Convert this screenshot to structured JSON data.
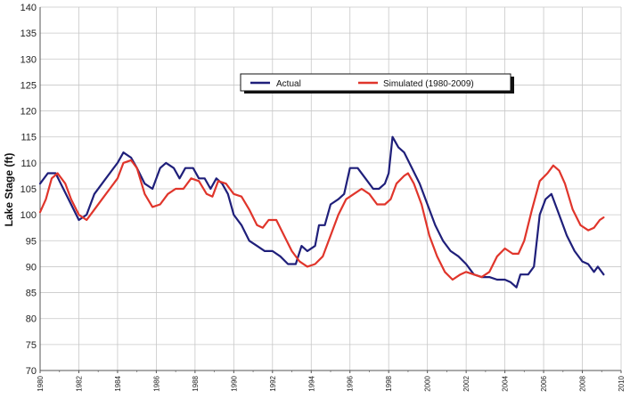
{
  "chart_data": {
    "type": "line",
    "title": "",
    "xlabel": "",
    "ylabel": "Lake Stage (ft)",
    "xlim": [
      1980,
      2010
    ],
    "ylim": [
      70,
      140
    ],
    "grid": true,
    "legend_position": "top-center",
    "x_ticks": [
      "1980",
      "1982",
      "1984",
      "1986",
      "1988",
      "1990",
      "1992",
      "1994",
      "1996",
      "1998",
      "2000",
      "2002",
      "2004",
      "2006",
      "2008",
      "2010"
    ],
    "y_ticks": [
      "70",
      "75",
      "80",
      "85",
      "90",
      "95",
      "100",
      "105",
      "110",
      "115",
      "120",
      "125",
      "130",
      "135",
      "140"
    ],
    "series": [
      {
        "name": "Actual",
        "color": "#1f1f7a",
        "points": [
          [
            1980.0,
            106.0
          ],
          [
            1980.4,
            108.0
          ],
          [
            1980.8,
            108.0
          ],
          [
            1981.2,
            105.0
          ],
          [
            1981.6,
            102.0
          ],
          [
            1982.0,
            99.0
          ],
          [
            1982.4,
            100.0
          ],
          [
            1982.8,
            104.0
          ],
          [
            1983.2,
            106.0
          ],
          [
            1983.6,
            108.0
          ],
          [
            1984.0,
            110.0
          ],
          [
            1984.3,
            112.0
          ],
          [
            1984.7,
            111.0
          ],
          [
            1985.0,
            109.0
          ],
          [
            1985.4,
            106.0
          ],
          [
            1985.8,
            105.0
          ],
          [
            1986.2,
            109.0
          ],
          [
            1986.5,
            110.0
          ],
          [
            1986.9,
            109.0
          ],
          [
            1987.2,
            107.0
          ],
          [
            1987.5,
            109.0
          ],
          [
            1987.9,
            109.0
          ],
          [
            1988.2,
            107.0
          ],
          [
            1988.5,
            107.0
          ],
          [
            1988.8,
            105.0
          ],
          [
            1989.1,
            107.0
          ],
          [
            1989.4,
            106.0
          ],
          [
            1989.7,
            104.0
          ],
          [
            1990.0,
            100.0
          ],
          [
            1990.4,
            98.0
          ],
          [
            1990.8,
            95.0
          ],
          [
            1991.2,
            94.0
          ],
          [
            1991.6,
            93.0
          ],
          [
            1992.0,
            93.0
          ],
          [
            1992.4,
            92.0
          ],
          [
            1992.8,
            90.5
          ],
          [
            1993.2,
            90.5
          ],
          [
            1993.5,
            94.0
          ],
          [
            1993.8,
            93.0
          ],
          [
            1994.2,
            94.0
          ],
          [
            1994.4,
            98.0
          ],
          [
            1994.7,
            98.0
          ],
          [
            1995.0,
            102.0
          ],
          [
            1995.4,
            103.0
          ],
          [
            1995.7,
            104.0
          ],
          [
            1996.0,
            109.0
          ],
          [
            1996.4,
            109.0
          ],
          [
            1996.8,
            107.0
          ],
          [
            1997.2,
            105.0
          ],
          [
            1997.5,
            105.0
          ],
          [
            1997.8,
            106.0
          ],
          [
            1998.0,
            108.0
          ],
          [
            1998.2,
            115.0
          ],
          [
            1998.5,
            113.0
          ],
          [
            1998.8,
            112.0
          ],
          [
            1999.2,
            109.0
          ],
          [
            1999.6,
            106.0
          ],
          [
            2000.0,
            102.0
          ],
          [
            2000.4,
            98.0
          ],
          [
            2000.8,
            95.0
          ],
          [
            2001.2,
            93.0
          ],
          [
            2001.6,
            92.0
          ],
          [
            2002.0,
            90.5
          ],
          [
            2002.4,
            88.5
          ],
          [
            2002.8,
            88.0
          ],
          [
            2003.2,
            88.0
          ],
          [
            2003.6,
            87.5
          ],
          [
            2004.0,
            87.5
          ],
          [
            2004.3,
            87.0
          ],
          [
            2004.6,
            86.0
          ],
          [
            2004.8,
            88.5
          ],
          [
            2005.2,
            88.5
          ],
          [
            2005.5,
            90.0
          ],
          [
            2005.8,
            100.0
          ],
          [
            2006.1,
            103.0
          ],
          [
            2006.4,
            104.0
          ],
          [
            2006.8,
            100.0
          ],
          [
            2007.2,
            96.0
          ],
          [
            2007.6,
            93.0
          ],
          [
            2008.0,
            91.0
          ],
          [
            2008.3,
            90.5
          ],
          [
            2008.6,
            89.0
          ],
          [
            2008.8,
            90.0
          ],
          [
            2009.1,
            88.5
          ]
        ]
      },
      {
        "name": "Simulated (1980-2009)",
        "color": "#e0352b",
        "points": [
          [
            1980.0,
            100.5
          ],
          [
            1980.3,
            103.0
          ],
          [
            1980.6,
            107.0
          ],
          [
            1980.9,
            108.0
          ],
          [
            1981.3,
            106.0
          ],
          [
            1981.6,
            103.0
          ],
          [
            1982.0,
            100.0
          ],
          [
            1982.4,
            99.0
          ],
          [
            1982.8,
            101.0
          ],
          [
            1983.2,
            103.0
          ],
          [
            1983.6,
            105.0
          ],
          [
            1984.0,
            107.0
          ],
          [
            1984.3,
            110.0
          ],
          [
            1984.7,
            110.5
          ],
          [
            1985.0,
            109.0
          ],
          [
            1985.4,
            104.0
          ],
          [
            1985.8,
            101.5
          ],
          [
            1986.2,
            102.0
          ],
          [
            1986.6,
            104.0
          ],
          [
            1987.0,
            105.0
          ],
          [
            1987.4,
            105.0
          ],
          [
            1987.8,
            107.0
          ],
          [
            1988.2,
            106.5
          ],
          [
            1988.6,
            104.0
          ],
          [
            1988.9,
            103.5
          ],
          [
            1989.2,
            106.5
          ],
          [
            1989.6,
            106.0
          ],
          [
            1990.0,
            104.0
          ],
          [
            1990.4,
            103.5
          ],
          [
            1990.8,
            101.0
          ],
          [
            1991.2,
            98.0
          ],
          [
            1991.5,
            97.5
          ],
          [
            1991.8,
            99.0
          ],
          [
            1992.2,
            99.0
          ],
          [
            1992.6,
            96.0
          ],
          [
            1993.0,
            93.0
          ],
          [
            1993.4,
            91.0
          ],
          [
            1993.8,
            90.0
          ],
          [
            1994.2,
            90.5
          ],
          [
            1994.6,
            92.0
          ],
          [
            1995.0,
            96.0
          ],
          [
            1995.4,
            100.0
          ],
          [
            1995.8,
            103.0
          ],
          [
            1996.2,
            104.0
          ],
          [
            1996.6,
            105.0
          ],
          [
            1997.0,
            104.0
          ],
          [
            1997.4,
            102.0
          ],
          [
            1997.8,
            102.0
          ],
          [
            1998.1,
            103.0
          ],
          [
            1998.4,
            106.0
          ],
          [
            1998.8,
            107.5
          ],
          [
            1999.0,
            108.0
          ],
          [
            1999.3,
            106.0
          ],
          [
            1999.7,
            102.0
          ],
          [
            2000.1,
            96.0
          ],
          [
            2000.5,
            92.0
          ],
          [
            2000.9,
            89.0
          ],
          [
            2001.3,
            87.5
          ],
          [
            2001.7,
            88.5
          ],
          [
            2002.0,
            89.0
          ],
          [
            2002.4,
            88.5
          ],
          [
            2002.8,
            88.0
          ],
          [
            2003.2,
            89.0
          ],
          [
            2003.6,
            92.0
          ],
          [
            2004.0,
            93.5
          ],
          [
            2004.4,
            92.5
          ],
          [
            2004.7,
            92.5
          ],
          [
            2005.0,
            95.0
          ],
          [
            2005.4,
            101.0
          ],
          [
            2005.8,
            106.5
          ],
          [
            2006.2,
            108.0
          ],
          [
            2006.5,
            109.5
          ],
          [
            2006.8,
            108.5
          ],
          [
            2007.1,
            106.0
          ],
          [
            2007.5,
            101.0
          ],
          [
            2007.9,
            98.0
          ],
          [
            2008.3,
            97.0
          ],
          [
            2008.6,
            97.5
          ],
          [
            2008.9,
            99.0
          ],
          [
            2009.1,
            99.5
          ]
        ]
      }
    ]
  }
}
